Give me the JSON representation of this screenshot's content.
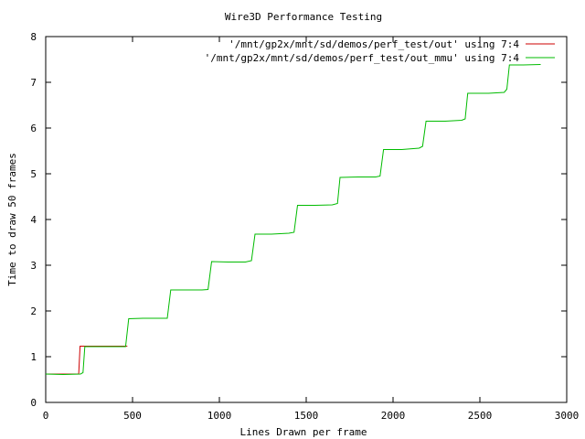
{
  "chart_data": {
    "type": "line",
    "title": "Wire3D Performance Testing",
    "xlabel": "Lines Drawn per frame",
    "ylabel": "Time to draw 50 frames",
    "xlim": [
      0,
      3000
    ],
    "ylim": [
      0,
      8
    ],
    "x_ticks": [
      "0",
      "500",
      "1000",
      "1500",
      "2000",
      "2500",
      "3000"
    ],
    "y_ticks": [
      "0",
      "1",
      "2",
      "3",
      "4",
      "5",
      "6",
      "7",
      "8"
    ],
    "grid": false,
    "legend_position": "top-right",
    "series": [
      {
        "name": "'/mnt/gp2x/mnt/sd/demos/perf_test/out' using 7:4",
        "color": "#cc0000",
        "points": [
          [
            0,
            0.62
          ],
          [
            190,
            0.62
          ],
          [
            198,
            1.23
          ],
          [
            470,
            1.23
          ]
        ]
      },
      {
        "name": "'/mnt/gp2x/mnt/sd/demos/perf_test/out_mmu' using 7:4",
        "color": "#00bb00",
        "points": [
          [
            0,
            0.62
          ],
          [
            100,
            0.61
          ],
          [
            200,
            0.62
          ],
          [
            215,
            0.65
          ],
          [
            225,
            1.22
          ],
          [
            330,
            1.22
          ],
          [
            460,
            1.22
          ],
          [
            478,
            1.83
          ],
          [
            560,
            1.84
          ],
          [
            620,
            1.84
          ],
          [
            700,
            1.84
          ],
          [
            720,
            2.46
          ],
          [
            800,
            2.46
          ],
          [
            900,
            2.46
          ],
          [
            935,
            2.47
          ],
          [
            955,
            3.08
          ],
          [
            1050,
            3.07
          ],
          [
            1150,
            3.07
          ],
          [
            1185,
            3.1
          ],
          [
            1205,
            3.68
          ],
          [
            1300,
            3.68
          ],
          [
            1400,
            3.7
          ],
          [
            1430,
            3.72
          ],
          [
            1450,
            4.31
          ],
          [
            1550,
            4.31
          ],
          [
            1650,
            4.32
          ],
          [
            1680,
            4.35
          ],
          [
            1695,
            4.92
          ],
          [
            1800,
            4.93
          ],
          [
            1900,
            4.93
          ],
          [
            1925,
            4.95
          ],
          [
            1945,
            5.53
          ],
          [
            2050,
            5.53
          ],
          [
            2150,
            5.56
          ],
          [
            2170,
            5.6
          ],
          [
            2190,
            6.15
          ],
          [
            2300,
            6.15
          ],
          [
            2395,
            6.17
          ],
          [
            2415,
            6.2
          ],
          [
            2430,
            6.76
          ],
          [
            2550,
            6.76
          ],
          [
            2640,
            6.78
          ],
          [
            2655,
            6.85
          ],
          [
            2670,
            7.38
          ],
          [
            2750,
            7.38
          ],
          [
            2850,
            7.39
          ]
        ]
      }
    ]
  }
}
